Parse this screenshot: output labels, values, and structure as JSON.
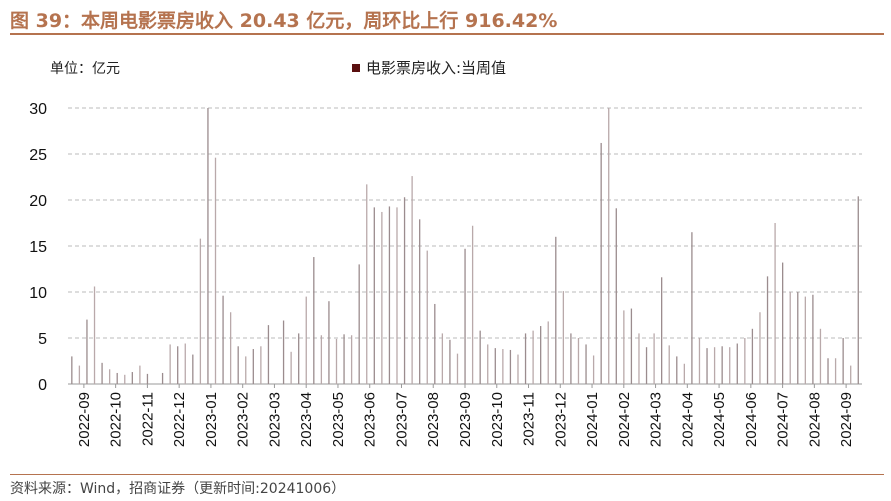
{
  "title": "图 39：本周电影票房收入 20.43 亿元，周环比上行 916.42%",
  "unit": "单位：亿元",
  "source": "资料来源：Wind，招商证券（更新时间:20241006）",
  "colors": {
    "title": "#b5734f",
    "bar": "#9b8c8e",
    "bar_alt": "#b9a9aa",
    "legend": "#5a0f0f"
  },
  "chart_data": {
    "type": "bar",
    "legend": [
      "电影票房收入:当周值"
    ],
    "legend_position": "top",
    "ylim": [
      0,
      30
    ],
    "yticks": [
      0,
      5,
      10,
      15,
      20,
      25,
      30
    ],
    "grid": true,
    "xtick_labels": [
      "2022-09",
      "2022-10",
      "2022-11",
      "2022-12",
      "2023-01",
      "2023-02",
      "2023-03",
      "2023-04",
      "2023-05",
      "2023-06",
      "2023-07",
      "2023-08",
      "2023-09",
      "2023-10",
      "2023-11",
      "2023-12",
      "2024-01",
      "2024-02",
      "2024-03",
      "2024-04",
      "2024-05",
      "2024-06",
      "2024-07",
      "2024-08",
      "2024-09"
    ],
    "values": [
      3.0,
      2.0,
      7.0,
      10.6,
      2.3,
      1.6,
      1.2,
      1.0,
      1.3,
      2.0,
      1.1,
      0,
      1.2,
      4.3,
      4.1,
      4.4,
      3.2,
      15.8,
      30.0,
      24.6,
      9.6,
      7.8,
      4.1,
      3.0,
      3.8,
      4.1,
      6.4,
      0,
      6.9,
      3.5,
      5.5,
      9.5,
      13.8,
      5.3,
      9.0,
      4.9,
      5.4,
      5.3,
      13.0,
      21.7,
      19.2,
      18.7,
      19.3,
      19.2,
      20.3,
      22.6,
      17.9,
      14.5,
      8.7,
      5.5,
      4.8,
      3.3,
      14.7,
      17.2,
      5.8,
      4.3,
      3.9,
      3.8,
      3.7,
      3.2,
      5.5,
      5.8,
      6.3,
      6.8,
      16.0,
      10.1,
      5.5,
      5.0,
      4.3,
      3.1,
      26.2,
      30.0,
      19.1,
      8.0,
      8.2,
      5.5,
      4.0,
      5.5,
      11.6,
      4.2,
      3.0,
      2.2,
      16.5,
      5.0,
      3.9,
      4.0,
      4.1,
      4.0,
      4.4,
      5.0,
      6.0,
      7.8,
      11.7,
      17.5,
      13.2,
      10.0,
      10.0,
      9.5,
      9.7,
      6.0,
      2.8,
      2.8,
      5.0,
      2.0,
      20.4
    ]
  }
}
